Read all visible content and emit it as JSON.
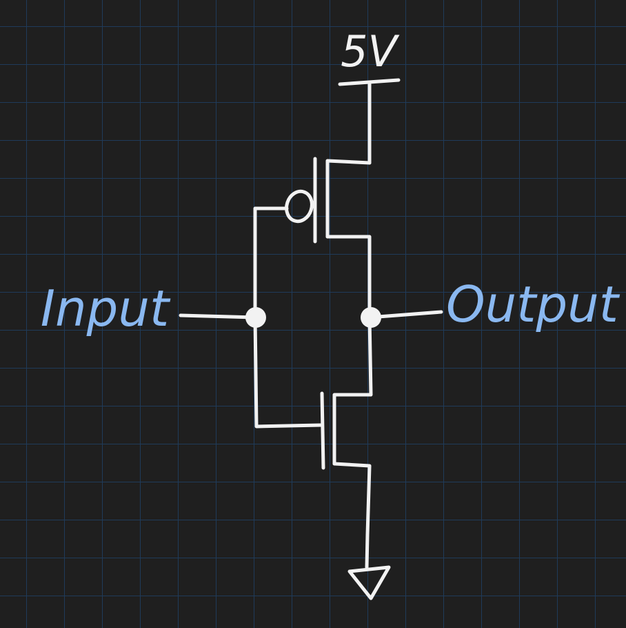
{
  "diagram": {
    "labels": {
      "supply": "5V",
      "input": "Input",
      "output": "Output"
    },
    "colors": {
      "background": "#1f1f1f",
      "grid": "#1f3b5a",
      "wire": "#f2f2f2",
      "label_input_output": "#8ab8f0",
      "label_supply": "#f2f2f2"
    }
  }
}
